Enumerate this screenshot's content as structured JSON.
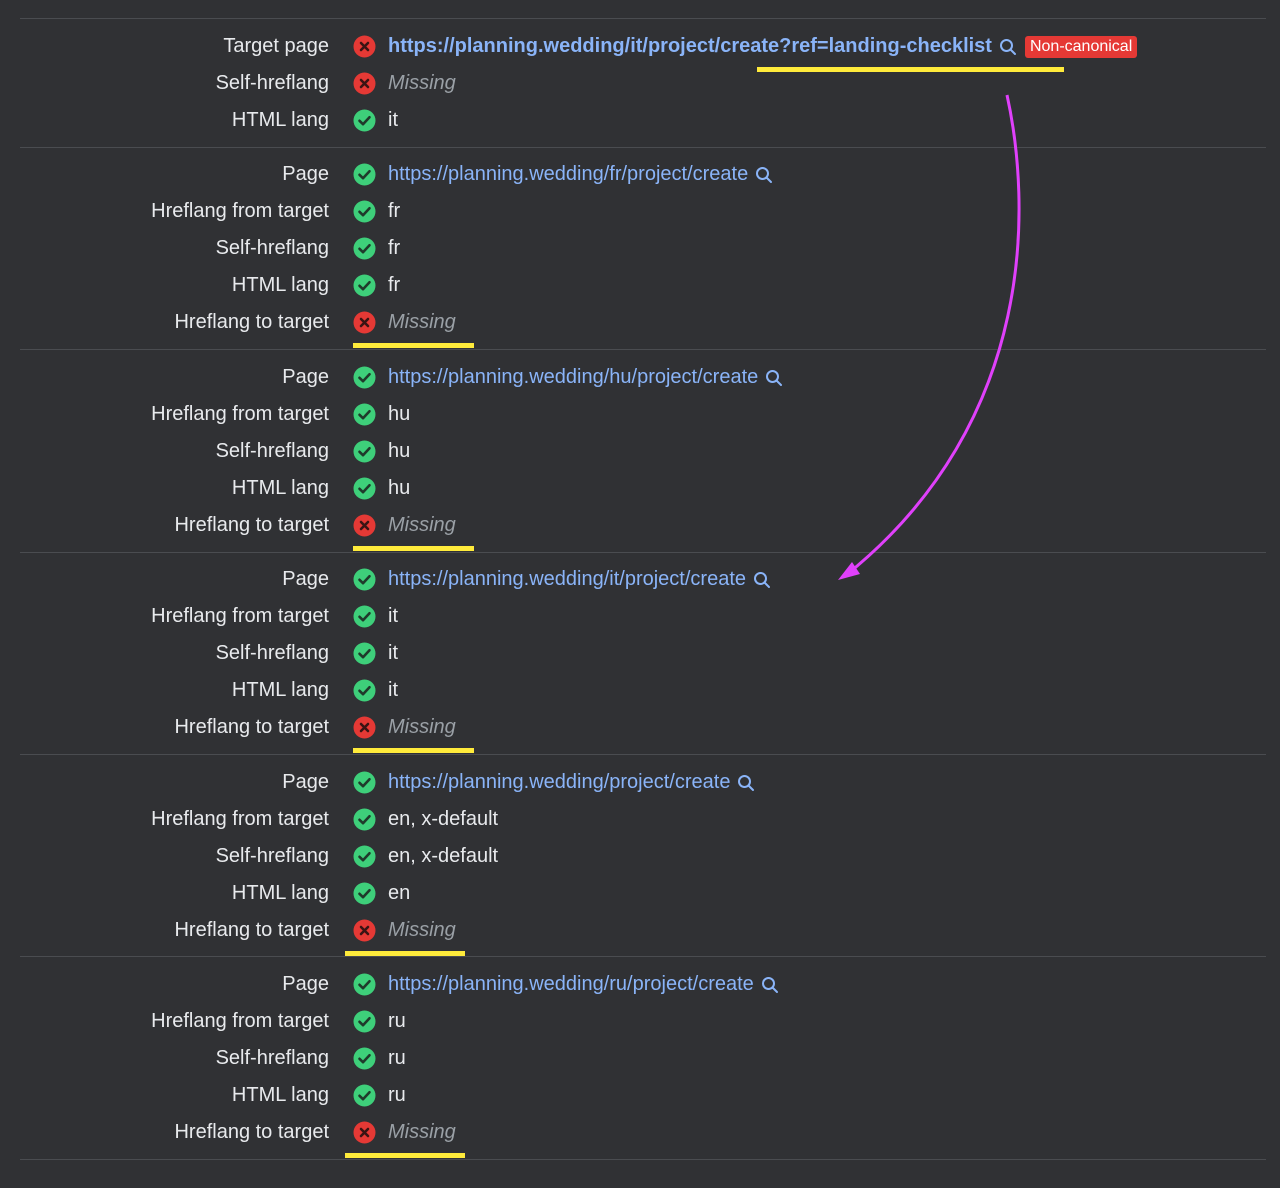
{
  "colors": {
    "background": "#303134",
    "link": "#8ab4f8",
    "ok": "#3ecf7a",
    "error": "#e53935",
    "highlight": "#ffeb3b",
    "arrow": "#e040fb"
  },
  "target": {
    "rows": [
      {
        "label": "Target page",
        "status": "error",
        "kind": "link-bold",
        "value": "https://planning.wedding/it/project/create?ref=landing-checklist",
        "badge": "Non-canonical"
      },
      {
        "label": "Self-hreflang",
        "status": "error",
        "kind": "missing",
        "value": "Missing"
      },
      {
        "label": "HTML lang",
        "status": "ok",
        "kind": "text",
        "value": "it"
      }
    ]
  },
  "groups": [
    {
      "rows": [
        {
          "label": "Page",
          "status": "ok",
          "kind": "link",
          "value": "https://planning.wedding/fr/project/create"
        },
        {
          "label": "Hreflang from target",
          "status": "ok",
          "kind": "text",
          "value": "fr"
        },
        {
          "label": "Self-hreflang",
          "status": "ok",
          "kind": "text",
          "value": "fr"
        },
        {
          "label": "HTML lang",
          "status": "ok",
          "kind": "text",
          "value": "fr"
        },
        {
          "label": "Hreflang to target",
          "status": "error",
          "kind": "missing",
          "value": "Missing"
        }
      ]
    },
    {
      "rows": [
        {
          "label": "Page",
          "status": "ok",
          "kind": "link",
          "value": "https://planning.wedding/hu/project/create"
        },
        {
          "label": "Hreflang from target",
          "status": "ok",
          "kind": "text",
          "value": "hu"
        },
        {
          "label": "Self-hreflang",
          "status": "ok",
          "kind": "text",
          "value": "hu"
        },
        {
          "label": "HTML lang",
          "status": "ok",
          "kind": "text",
          "value": "hu"
        },
        {
          "label": "Hreflang to target",
          "status": "error",
          "kind": "missing",
          "value": "Missing"
        }
      ]
    },
    {
      "rows": [
        {
          "label": "Page",
          "status": "ok",
          "kind": "link",
          "value": "https://planning.wedding/it/project/create"
        },
        {
          "label": "Hreflang from target",
          "status": "ok",
          "kind": "text",
          "value": "it"
        },
        {
          "label": "Self-hreflang",
          "status": "ok",
          "kind": "text",
          "value": "it"
        },
        {
          "label": "HTML lang",
          "status": "ok",
          "kind": "text",
          "value": "it"
        },
        {
          "label": "Hreflang to target",
          "status": "error",
          "kind": "missing",
          "value": "Missing"
        }
      ]
    },
    {
      "rows": [
        {
          "label": "Page",
          "status": "ok",
          "kind": "link",
          "value": "https://planning.wedding/project/create"
        },
        {
          "label": "Hreflang from target",
          "status": "ok",
          "kind": "text",
          "value": "en, x-default"
        },
        {
          "label": "Self-hreflang",
          "status": "ok",
          "kind": "text",
          "value": "en, x-default"
        },
        {
          "label": "HTML lang",
          "status": "ok",
          "kind": "text",
          "value": "en"
        },
        {
          "label": "Hreflang to target",
          "status": "error",
          "kind": "missing",
          "value": "Missing"
        }
      ]
    },
    {
      "rows": [
        {
          "label": "Page",
          "status": "ok",
          "kind": "link",
          "value": "https://planning.wedding/ru/project/create"
        },
        {
          "label": "Hreflang from target",
          "status": "ok",
          "kind": "text",
          "value": "ru"
        },
        {
          "label": "Self-hreflang",
          "status": "ok",
          "kind": "text",
          "value": "ru"
        },
        {
          "label": "HTML lang",
          "status": "ok",
          "kind": "text",
          "value": "ru"
        },
        {
          "label": "Hreflang to target",
          "status": "error",
          "kind": "missing",
          "value": "Missing"
        }
      ]
    }
  ]
}
